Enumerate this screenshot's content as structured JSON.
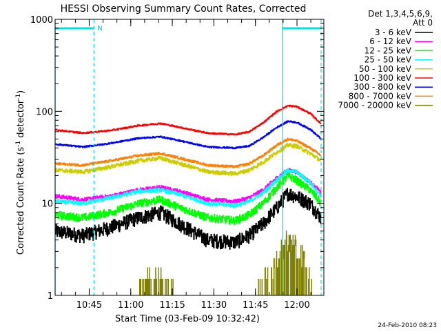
{
  "chart_data": {
    "type": "line",
    "title": "HESSI Observing Summary Count Rates, Corrected",
    "xlabel": "Start Time (03-Feb-09 10:32:42)",
    "ylabel_main": "Corrected Count Rate (s",
    "ylabel_sup1": "-1",
    "ylabel_mid": " detector",
    "ylabel_sup2": "-1",
    "ylabel_end": ")",
    "yscale": "log",
    "ylim": [
      1,
      1000
    ],
    "xlim_minutes": [
      0,
      97
    ],
    "y_tick_labels": [
      "1",
      "10",
      "100",
      "1000"
    ],
    "y_ticks": [
      1,
      10,
      100,
      1000
    ],
    "x_tick_labels": [
      "10:45",
      "11:00",
      "11:15",
      "11:30",
      "11:45",
      "12:00"
    ],
    "x_ticks_minutes": [
      12.3,
      27.3,
      42.3,
      57.3,
      72.3,
      87.3
    ],
    "legend_header_1": "Det 1,3,4,5,6,9,",
    "legend_header_2": "Att 0",
    "timestamp": "24-Feb-2010 08:23",
    "flag_label": "N",
    "flag_bars": [
      [
        0,
        14
      ],
      [
        82,
        96
      ]
    ],
    "vertical_markers": [
      {
        "t": 0,
        "style": "solid"
      },
      {
        "t": 14,
        "style": "dashed"
      },
      {
        "t": 82,
        "style": "solid"
      },
      {
        "t": 96,
        "style": "dashed"
      }
    ],
    "series": [
      {
        "name": "3 - 6 keV",
        "color": "#000000",
        "noise": 0.18,
        "x": [
          0,
          10,
          20,
          30,
          38,
          45,
          55,
          65,
          70,
          75,
          80,
          84,
          87,
          92,
          96
        ],
        "y": [
          5.0,
          4.5,
          5.5,
          7.0,
          8.0,
          6.0,
          4.0,
          3.8,
          4.5,
          6.0,
          9.0,
          13.0,
          12.0,
          10.0,
          7.0
        ]
      },
      {
        "name": "6 - 12 keV",
        "color": "#ff00ff",
        "noise": 0.05,
        "x": [
          0,
          10,
          20,
          30,
          38,
          45,
          55,
          65,
          70,
          75,
          80,
          84,
          87,
          92,
          96
        ],
        "y": [
          12.0,
          11.0,
          12.0,
          14.0,
          15.0,
          13.5,
          11.0,
          10.5,
          11.5,
          14.0,
          19.0,
          23.0,
          22.0,
          17.0,
          13.0
        ]
      },
      {
        "name": "12 - 25 keV",
        "color": "#00ff00",
        "noise": 0.1,
        "x": [
          0,
          10,
          20,
          30,
          38,
          45,
          55,
          65,
          70,
          75,
          80,
          84,
          87,
          92,
          96
        ],
        "y": [
          7.5,
          7.0,
          8.0,
          10.0,
          11.0,
          9.0,
          7.0,
          6.5,
          7.5,
          10.0,
          15.0,
          20.0,
          18.0,
          14.0,
          10.0
        ]
      },
      {
        "name": "25 - 50 keV",
        "color": "#00ffff",
        "noise": 0.05,
        "x": [
          0,
          10,
          20,
          30,
          38,
          45,
          55,
          65,
          70,
          75,
          80,
          84,
          87,
          92,
          96
        ],
        "y": [
          10.5,
          10.0,
          11.5,
          13.5,
          14.0,
          12.5,
          10.0,
          9.5,
          10.5,
          13.0,
          18.0,
          23.0,
          22.0,
          17.0,
          12.0
        ]
      },
      {
        "name": "50 - 100 keV",
        "color": "#cccc00",
        "noise": 0.05,
        "x": [
          0,
          10,
          20,
          30,
          38,
          45,
          55,
          65,
          70,
          75,
          80,
          84,
          87,
          92,
          96
        ],
        "y": [
          23.0,
          22.0,
          25.0,
          29.0,
          31.0,
          27.0,
          22.0,
          21.0,
          23.0,
          28.0,
          36.0,
          43.0,
          42.0,
          35.0,
          29.0
        ]
      },
      {
        "name": "100 - 300 keV",
        "color": "#ff0000",
        "noise": 0.02,
        "x": [
          0,
          10,
          20,
          30,
          38,
          45,
          55,
          65,
          70,
          75,
          80,
          84,
          87,
          92,
          96
        ],
        "y": [
          63.0,
          58.0,
          62.0,
          70.0,
          74.0,
          67.0,
          58.0,
          56.0,
          60.0,
          75.0,
          100.0,
          115.0,
          113.0,
          95.0,
          73.0
        ]
      },
      {
        "name": "300 - 800 keV",
        "color": "#0000ff",
        "noise": 0.02,
        "x": [
          0,
          10,
          20,
          30,
          38,
          45,
          55,
          65,
          70,
          75,
          80,
          84,
          87,
          92,
          96
        ],
        "y": [
          44.0,
          41.0,
          45.0,
          51.0,
          53.0,
          48.0,
          41.0,
          40.0,
          42.0,
          52.0,
          67.0,
          78.0,
          76.0,
          64.0,
          50.0
        ]
      },
      {
        "name": "800 - 7000 keV",
        "color": "#ff8000",
        "noise": 0.03,
        "x": [
          0,
          10,
          20,
          30,
          38,
          45,
          55,
          65,
          70,
          75,
          80,
          84,
          87,
          92,
          96
        ],
        "y": [
          27.0,
          26.0,
          29.0,
          33.0,
          35.0,
          31.0,
          26.0,
          25.0,
          27.0,
          33.0,
          43.0,
          50.0,
          48.0,
          40.0,
          33.0
        ]
      },
      {
        "name": "7000 - 20000 keV",
        "color": "#808000",
        "noise": 0.0,
        "x": [
          30,
          33,
          36,
          39,
          42,
          45,
          48,
          72,
          75,
          78,
          81,
          84,
          87,
          90,
          93
        ],
        "y": [
          1.0,
          1.4,
          1.5,
          1.6,
          1.4,
          1.0,
          1.0,
          1.0,
          1.5,
          2.0,
          3.0,
          4.0,
          3.5,
          2.5,
          1.5
        ]
      }
    ]
  }
}
